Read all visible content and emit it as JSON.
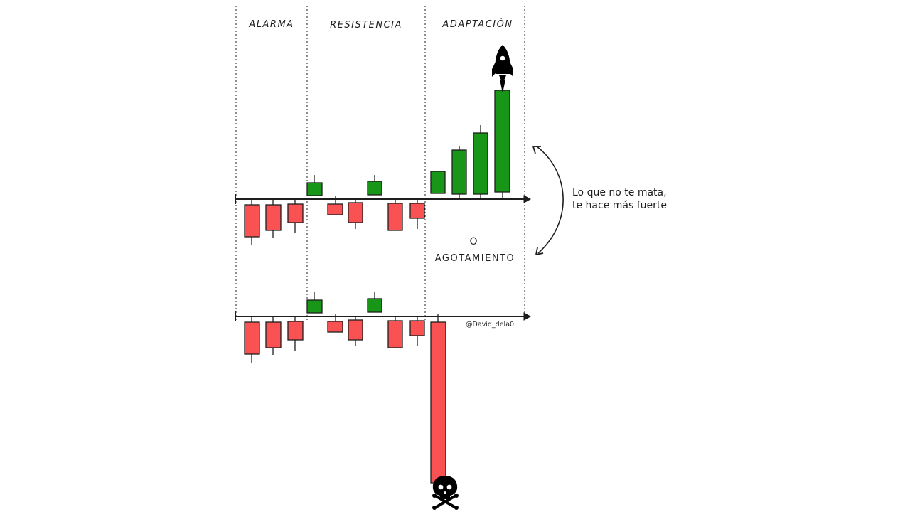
{
  "phases": [
    {
      "label": "ALARMA"
    },
    {
      "label": "RESISTENCIA"
    },
    {
      "label": "ADAPTACIÓN"
    }
  ],
  "annotation": {
    "line1": "Lo que no te mata,",
    "line2": "te hace más fuerte"
  },
  "middle": {
    "or_label": "O",
    "exhaustion_label": "AGOTAMIENTO"
  },
  "credit": "@David_dela0",
  "colors": {
    "bull": "#179617",
    "bear": "#fa5252",
    "ink": "#1e1e1e"
  },
  "icons": {
    "top_outcome": "rocket-icon",
    "bottom_outcome": "skull-crossbones-icon"
  }
}
